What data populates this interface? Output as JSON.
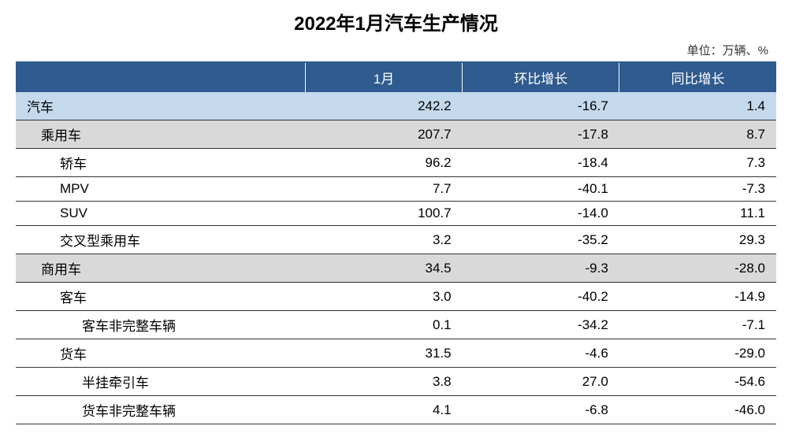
{
  "title": "2022年1月汽车生产情况",
  "unit_label": "单位：万辆、%",
  "columns": [
    "",
    "1月",
    "环比增长",
    "同比增长"
  ],
  "header_bg": "#2f5b8f",
  "header_fg": "#ffffff",
  "highlight_bg": "#c5d9ed",
  "subheader_bg": "#d9d9d9",
  "border_color": "#333333",
  "rows": [
    {
      "label": "汽车",
      "indent": 0,
      "style": "highlight",
      "values": [
        "242.2",
        "-16.7",
        "1.4"
      ]
    },
    {
      "label": "乘用车",
      "indent": 1,
      "style": "subheader",
      "values": [
        "207.7",
        "-17.8",
        "8.7"
      ]
    },
    {
      "label": "轿车",
      "indent": 2,
      "style": "normal",
      "values": [
        "96.2",
        "-18.4",
        "7.3"
      ]
    },
    {
      "label": "MPV",
      "indent": 2,
      "style": "normal",
      "values": [
        "7.7",
        "-40.1",
        "-7.3"
      ]
    },
    {
      "label": "SUV",
      "indent": 2,
      "style": "normal",
      "values": [
        "100.7",
        "-14.0",
        "11.1"
      ]
    },
    {
      "label": "交叉型乘用车",
      "indent": 2,
      "style": "normal",
      "values": [
        "3.2",
        "-35.2",
        "29.3"
      ]
    },
    {
      "label": "商用车",
      "indent": 1,
      "style": "subheader",
      "values": [
        "34.5",
        "-9.3",
        "-28.0"
      ]
    },
    {
      "label": "客车",
      "indent": 2,
      "style": "normal",
      "values": [
        "3.0",
        "-40.2",
        "-14.9"
      ]
    },
    {
      "label": "客车非完整车辆",
      "indent": 3,
      "style": "normal",
      "values": [
        "0.1",
        "-34.2",
        "-7.1"
      ]
    },
    {
      "label": "货车",
      "indent": 2,
      "style": "normal",
      "values": [
        "31.5",
        "-4.6",
        "-29.0"
      ]
    },
    {
      "label": "半挂牵引车",
      "indent": 3,
      "style": "normal",
      "values": [
        "3.8",
        "27.0",
        "-54.6"
      ]
    },
    {
      "label": "货车非完整车辆",
      "indent": 3,
      "style": "normal",
      "values": [
        "4.1",
        "-6.8",
        "-46.0"
      ]
    }
  ]
}
